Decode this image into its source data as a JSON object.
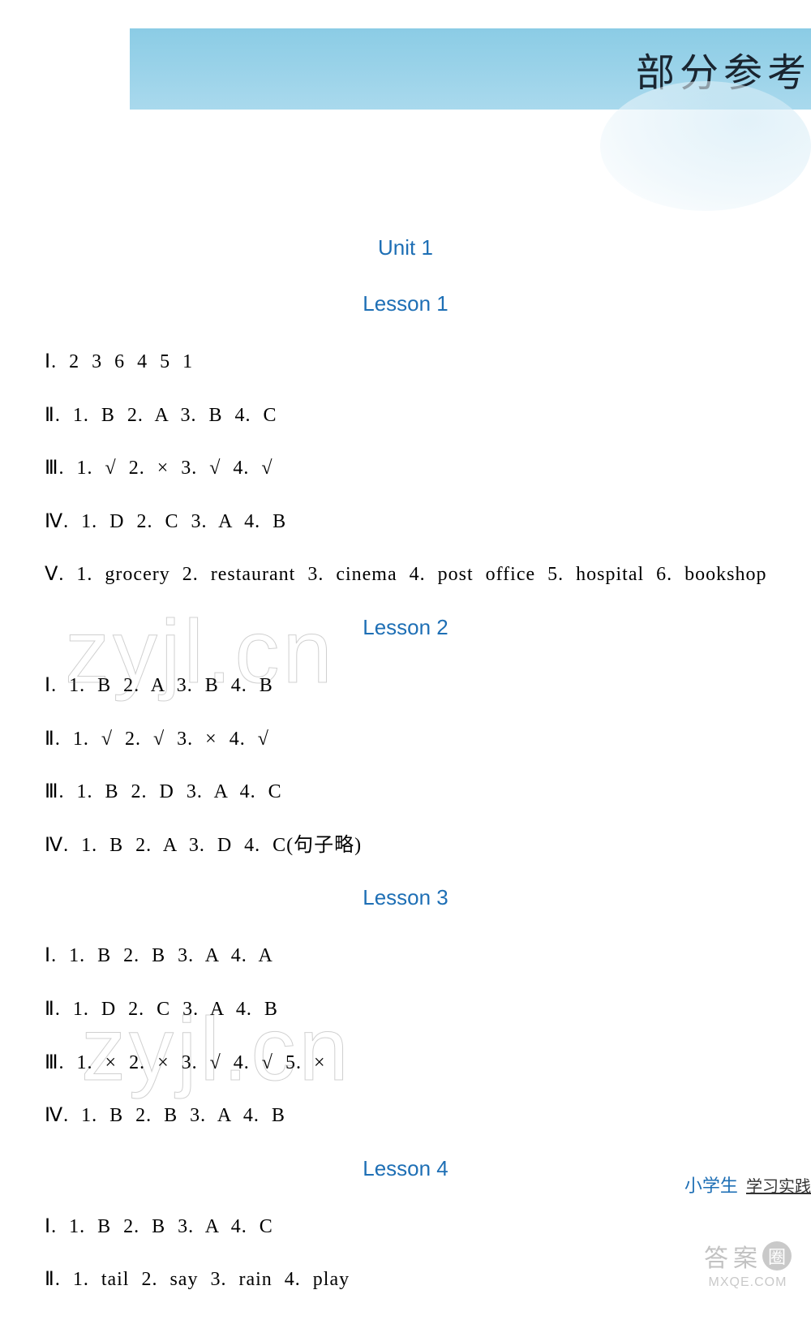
{
  "header": {
    "title": "部分参考",
    "background_color": "#8bcce5",
    "text_color": "#1a2530"
  },
  "unit": {
    "label": "Unit 1",
    "color": "#1e6fb5"
  },
  "lessons": [
    {
      "heading": "Lesson 1",
      "lines": [
        "Ⅰ. 2   3   6   4   5   1",
        "Ⅱ. 1. B   2. A   3. B   4. C",
        "Ⅲ. 1. √   2. ×   3. √   4. √",
        "Ⅳ. 1. D   2. C   3. A   4. B",
        "Ⅴ. 1. grocery   2. restaurant   3. cinema   4. post office   5. hospital   6. bookshop"
      ]
    },
    {
      "heading": "Lesson 2",
      "lines": [
        "Ⅰ. 1. B   2. A   3. B   4. B",
        "Ⅱ. 1. √   2. √   3. ×   4. √",
        "Ⅲ. 1. B   2. D   3. A   4. C",
        "Ⅳ. 1. B   2. A   3. D   4. C(句子略)"
      ]
    },
    {
      "heading": "Lesson 3",
      "lines": [
        "Ⅰ. 1. B   2. B   3. A   4. A",
        "Ⅱ. 1. D   2. C   3. A   4. B",
        "Ⅲ. 1. ×   2. ×   3. √   4. √   5. ×",
        "Ⅳ. 1. B   2. B   3. A   4. B"
      ]
    },
    {
      "heading": "Lesson 4",
      "lines": [
        "Ⅰ. 1. B   2. B   3. A   4. C",
        "Ⅱ. 1. tail   2. say   3. rain   4. play"
      ]
    }
  ],
  "footer": {
    "brand": "小学生",
    "sub": "学习实践"
  },
  "watermarks": {
    "text1": "zyjl.cn",
    "text2": "zyjl.cn"
  },
  "stamp": {
    "char1": "答",
    "char2": "案",
    "circle": "圈",
    "url": "MXQE.COM"
  },
  "styling": {
    "page_background": "#ffffff",
    "heading_color": "#1e6fb5",
    "body_text_color": "#000000",
    "body_font_size": 24,
    "heading_font_size": 26,
    "header_font_size": 48,
    "watermark_color": "rgba(150,150,150,0.25)",
    "watermark_font_size": 110
  }
}
